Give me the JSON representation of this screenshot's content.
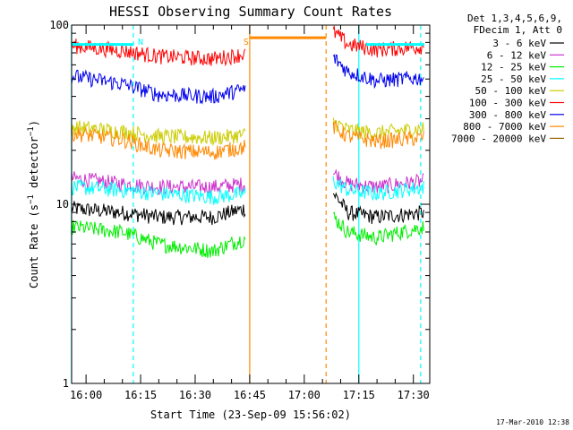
{
  "chart_data": {
    "type": "line",
    "title": "HESSI Observing Summary Count Rates",
    "xlabel": "Start Time (23-Sep-09 15:56:02)",
    "ylabel": "Count Rate (s^-1 detector^-1)",
    "ylabel_parts": {
      "base": "Count Rate (s",
      "sup": "−1",
      "mid": " detector",
      "sup2": "−1",
      "end": ")"
    },
    "yscale": "log",
    "xlim": [
      "15:56:02",
      "17:34:30"
    ],
    "ylim": [
      1,
      100
    ],
    "y_ticks": [
      {
        "value": 1,
        "label": "1"
      },
      {
        "value": 10,
        "label": "10"
      },
      {
        "value": 100,
        "label": "100"
      }
    ],
    "x_ticks": [
      {
        "time": "16:00",
        "label": "16:00"
      },
      {
        "time": "16:15",
        "label": "16:15"
      },
      {
        "time": "16:30",
        "label": "16:30"
      },
      {
        "time": "16:45",
        "label": "16:45"
      },
      {
        "time": "17:00",
        "label": "17:00"
      },
      {
        "time": "17:15",
        "label": "17:15"
      },
      {
        "time": "17:30",
        "label": "17:30"
      }
    ],
    "legend_header": [
      "Det 1,3,4,5,6,9,",
      "FDecim 1, Att 0"
    ],
    "legend_position": "top-right-outside",
    "series": [
      {
        "name": "3 - 6 keV",
        "color": "#000000",
        "segments": [
          {
            "x": [
              "15:56",
              "16:10",
              "16:20",
              "16:35",
              "16:44"
            ],
            "y": [
              9.5,
              9.0,
              8.5,
              8.5,
              9.5
            ]
          },
          {
            "x": [
              "17:08",
              "17:12",
              "17:20",
              "17:33"
            ],
            "y": [
              11.5,
              9.0,
              8.5,
              9.0
            ]
          }
        ]
      },
      {
        "name": "6 - 12 keV",
        "color": "#cc33cc",
        "segments": [
          {
            "x": [
              "15:56",
              "16:10",
              "16:20",
              "16:35",
              "16:44"
            ],
            "y": [
              14.0,
              13.0,
              12.5,
              12.5,
              13.0
            ]
          },
          {
            "x": [
              "17:08",
              "17:12",
              "17:20",
              "17:33"
            ],
            "y": [
              15.0,
              13.0,
              12.5,
              13.5
            ]
          }
        ]
      },
      {
        "name": "12 - 25 keV",
        "color": "#00ee00",
        "segments": [
          {
            "x": [
              "15:56",
              "16:10",
              "16:20",
              "16:35",
              "16:44"
            ],
            "y": [
              7.5,
              7.0,
              6.0,
              5.5,
              6.5
            ]
          },
          {
            "x": [
              "17:08",
              "17:12",
              "17:20",
              "17:33"
            ],
            "y": [
              8.5,
              7.0,
              6.5,
              7.5
            ]
          }
        ]
      },
      {
        "name": "25 - 50 keV",
        "color": "#00ffff",
        "segments": [
          {
            "x": [
              "15:56",
              "16:10",
              "16:20",
              "16:35",
              "16:44"
            ],
            "y": [
              12.5,
              12.0,
              11.5,
              11.0,
              11.5
            ]
          },
          {
            "x": [
              "17:08",
              "17:12",
              "17:20",
              "17:33"
            ],
            "y": [
              13.5,
              12.0,
              11.5,
              12.5
            ]
          }
        ]
      },
      {
        "name": "50 - 100 keV",
        "color": "#cccc00",
        "segments": [
          {
            "x": [
              "15:56",
              "16:10",
              "16:20",
              "16:35",
              "16:44"
            ],
            "y": [
              27.0,
              25.5,
              24.0,
              23.5,
              24.5
            ]
          },
          {
            "x": [
              "17:08",
              "17:12",
              "17:20",
              "17:33"
            ],
            "y": [
              29.0,
              26.0,
              25.0,
              26.5
            ]
          }
        ]
      },
      {
        "name": "100 - 300 keV",
        "color": "#ff0000",
        "segments": [
          {
            "x": [
              "15:56",
              "16:10",
              "16:20",
              "16:35",
              "16:44"
            ],
            "y": [
              77.0,
              72.0,
              67.0,
              65.0,
              69.0
            ]
          },
          {
            "x": [
              "17:08",
              "17:12",
              "17:20",
              "17:33"
            ],
            "y": [
              92.0,
              78.0,
              73.0,
              76.0
            ]
          }
        ]
      },
      {
        "name": "300 - 800 keV",
        "color": "#0000ee",
        "segments": [
          {
            "x": [
              "15:56",
              "16:10",
              "16:20",
              "16:35",
              "16:44"
            ],
            "y": [
              52.0,
              47.0,
              41.0,
              40.0,
              44.0
            ]
          },
          {
            "x": [
              "17:08",
              "17:12",
              "17:20",
              "17:33"
            ],
            "y": [
              66.0,
              55.0,
              49.0,
              51.0
            ]
          }
        ]
      },
      {
        "name": "800 - 7000 keV",
        "color": "#ff8800",
        "segments": [
          {
            "x": [
              "15:56",
              "16:10",
              "16:20",
              "16:35",
              "16:44"
            ],
            "y": [
              25.0,
              23.0,
              20.0,
              19.5,
              21.0
            ]
          },
          {
            "x": [
              "16:45",
              "17:06"
            ],
            "y": [
              85.0,
              85.0
            ]
          },
          {
            "x": [
              "17:08",
              "17:12",
              "17:20",
              "17:33"
            ],
            "y": [
              27.0,
              24.0,
              22.5,
              23.5
            ]
          }
        ]
      },
      {
        "name": "7000 - 20000 keV",
        "color": "#996600",
        "segments": []
      }
    ],
    "flags": [
      {
        "kind": "saa",
        "color": "#00ffff",
        "x_start": "15:56",
        "x_end": "16:13",
        "y": 78,
        "label": "N",
        "label_x": "16:15"
      },
      {
        "kind": "saa",
        "color": "#00ffff",
        "x_start": "17:17",
        "x_end": "17:33",
        "y": 78,
        "label": "",
        "label_x": ""
      },
      {
        "kind": "marker",
        "color": "#ff8800",
        "x_start": "",
        "x_end": "",
        "y": 0,
        "label": "S",
        "label_x": "16:44"
      }
    ],
    "vlines": [
      {
        "time": "15:56",
        "color": "#00ffff",
        "style": "solid"
      },
      {
        "time": "16:13",
        "color": "#00ffff",
        "style": "dashed"
      },
      {
        "time": "16:45",
        "color": "#ff8800",
        "style": "solid"
      },
      {
        "time": "17:06",
        "color": "#ff8800",
        "style": "dashed"
      },
      {
        "time": "17:15",
        "color": "#00ffff",
        "style": "solid"
      },
      {
        "time": "17:32",
        "color": "#00ffff",
        "style": "dashed"
      }
    ]
  },
  "timestamp": "17-Mar-2010 12:38"
}
